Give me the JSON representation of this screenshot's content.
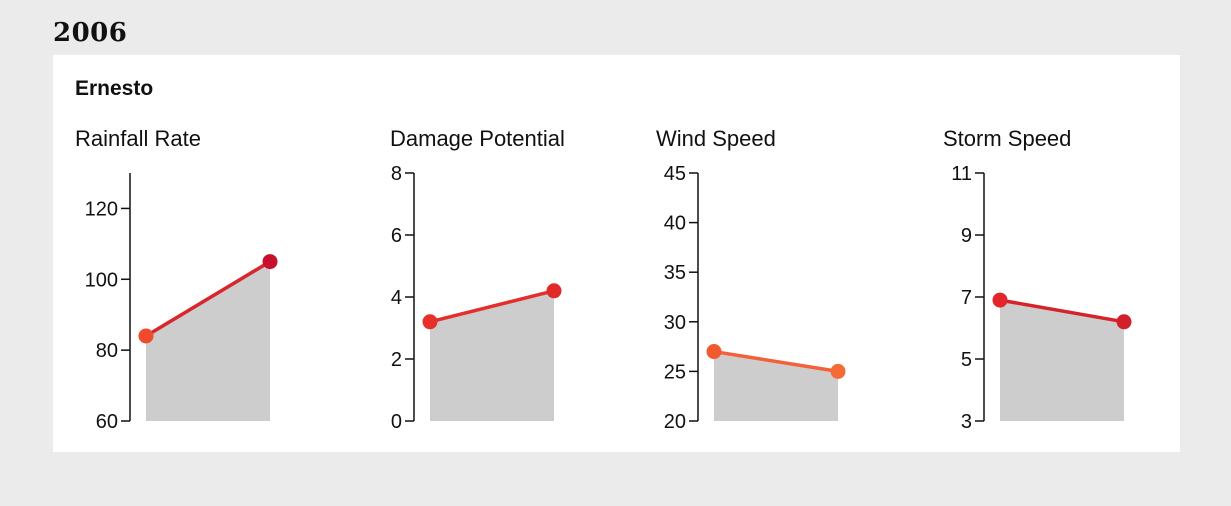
{
  "year": "2006",
  "storm": {
    "name": "Ernesto"
  },
  "colors": {
    "background": "#ebebeb",
    "panel": "#ffffff",
    "area": "#cdcdcd"
  },
  "chart_data": [
    {
      "type": "line",
      "title": "Rainfall Rate",
      "ylim": [
        60,
        130
      ],
      "yticks": [
        60,
        80,
        100,
        120
      ],
      "values": [
        84,
        105
      ],
      "point_colors": [
        "#f04a2c",
        "#c8102e"
      ],
      "line_color": "#d9262c"
    },
    {
      "type": "line",
      "title": "Damage Potential",
      "ylim": [
        0,
        8
      ],
      "yticks": [
        0,
        2,
        4,
        6,
        8
      ],
      "values": [
        3.2,
        4.2
      ],
      "point_colors": [
        "#e8302a",
        "#e02a2a"
      ],
      "line_color": "#e3302c"
    },
    {
      "type": "line",
      "title": "Wind Speed",
      "ylim": [
        20,
        45
      ],
      "yticks": [
        20,
        25,
        30,
        35,
        40,
        45
      ],
      "values": [
        27,
        25
      ],
      "point_colors": [
        "#f2592f",
        "#f56a35"
      ],
      "line_color": "#f3603a"
    },
    {
      "type": "line",
      "title": "Storm Speed",
      "ylim": [
        3,
        11
      ],
      "yticks": [
        3,
        5,
        7,
        9,
        11
      ],
      "values": [
        6.9,
        6.2
      ],
      "point_colors": [
        "#e3262b",
        "#d21f2b"
      ],
      "line_color": "#d6232b"
    }
  ]
}
